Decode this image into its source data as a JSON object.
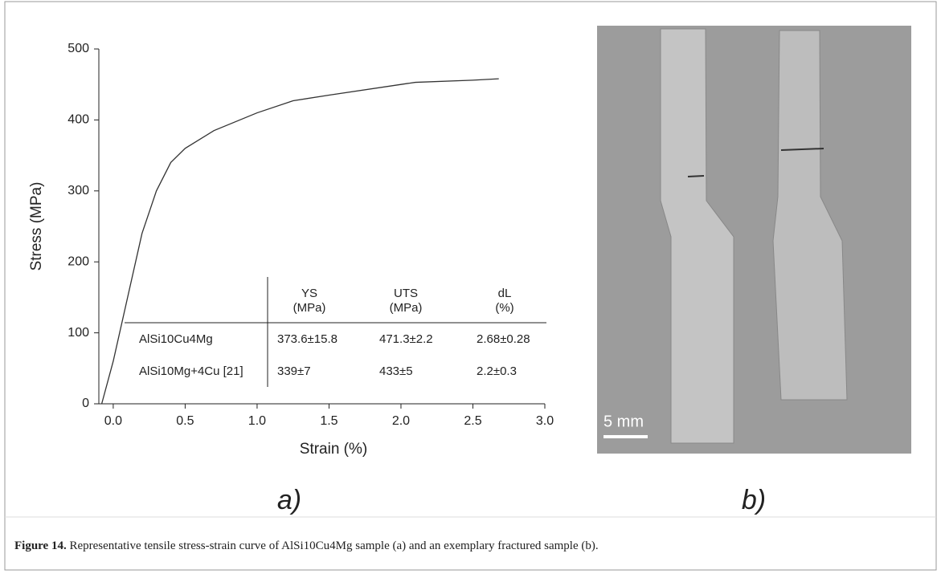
{
  "chart_data": {
    "type": "line",
    "xlabel": "Strain (%)",
    "ylabel": "Stress (MPa)",
    "x": [
      -0.08,
      0.0,
      0.1,
      0.2,
      0.3,
      0.4,
      0.5,
      0.7,
      1.0,
      1.25,
      1.5,
      2.0,
      2.1,
      2.5,
      2.68
    ],
    "series": [
      {
        "color": "#333333",
        "values": [
          0,
          60,
          150,
          240,
          300,
          340,
          360,
          385,
          410,
          427,
          435,
          450,
          453,
          456,
          458
        ]
      }
    ],
    "xlim": [
      -0.1,
      3.0
    ],
    "ylim": [
      0,
      500
    ],
    "xticks": [
      {
        "value": 0,
        "label": "0.0"
      },
      0.5,
      {
        "value": 1,
        "label": "1.0"
      },
      1.5,
      {
        "value": 2,
        "label": "2.0"
      },
      2.5,
      {
        "value": 3,
        "label": "3.0"
      }
    ],
    "yticks": [
      0,
      100,
      200,
      300,
      400,
      500
    ],
    "grid": false
  },
  "inset_table": {
    "headers": [
      [
        "YS",
        "(MPa)"
      ],
      [
        "UTS",
        "(MPa)"
      ],
      [
        "dL",
        "(%)"
      ]
    ],
    "rows": [
      [
        "AlSi10Cu4Mg",
        "373.6±15.8",
        "471.3±2.2",
        "2.68±0.28"
      ],
      [
        "AlSi10Mg+4Cu [21]",
        "339±7",
        "433±5",
        "2.2±0.3"
      ]
    ]
  },
  "photo": {
    "scale_label": "5 mm"
  },
  "panel_labels": [
    "a)",
    "b)"
  ],
  "caption": {
    "label": "Figure 14.",
    "text": "Representative tensile stress-strain curve of AlSi10Cu4Mg sample (a) and an exemplary fractured sample (b)."
  }
}
